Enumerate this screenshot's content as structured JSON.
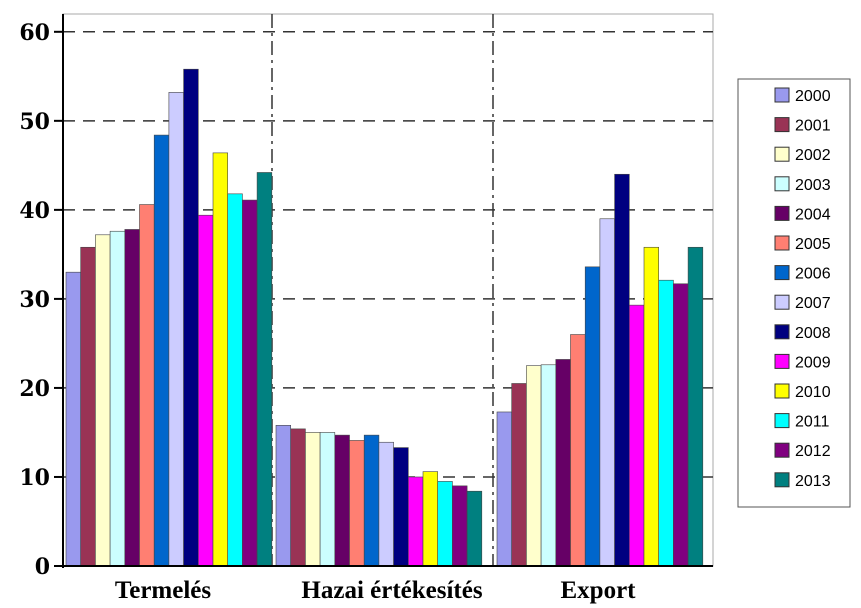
{
  "chart_data": {
    "type": "bar",
    "categories": [
      "Termelés",
      "Hazai értékesítés",
      "Export"
    ],
    "series": [
      {
        "name": "2000",
        "color": "#9999ee",
        "values": [
          33.0,
          15.8,
          17.3
        ]
      },
      {
        "name": "2001",
        "color": "#993355",
        "values": [
          35.8,
          15.4,
          20.5
        ]
      },
      {
        "name": "2002",
        "color": "#ffffcc",
        "values": [
          37.2,
          15.0,
          22.5
        ]
      },
      {
        "name": "2003",
        "color": "#ccffff",
        "values": [
          37.6,
          15.0,
          22.6
        ]
      },
      {
        "name": "2004",
        "color": "#660066",
        "values": [
          37.8,
          14.7,
          23.2
        ]
      },
      {
        "name": "2005",
        "color": "#ff7f72",
        "values": [
          40.6,
          14.1,
          26.0
        ]
      },
      {
        "name": "2006",
        "color": "#0066cc",
        "values": [
          48.4,
          14.7,
          33.6
        ]
      },
      {
        "name": "2007",
        "color": "#ccccff",
        "values": [
          53.2,
          13.9,
          39.0
        ]
      },
      {
        "name": "2008",
        "color": "#000080",
        "values": [
          55.8,
          13.3,
          44.0
        ]
      },
      {
        "name": "2009",
        "color": "#ff00ff",
        "values": [
          39.4,
          10.0,
          29.3
        ]
      },
      {
        "name": "2010",
        "color": "#ffff00",
        "values": [
          46.4,
          10.6,
          35.8
        ]
      },
      {
        "name": "2011",
        "color": "#00ffff",
        "values": [
          41.8,
          9.5,
          32.1
        ]
      },
      {
        "name": "2012",
        "color": "#800080",
        "values": [
          41.1,
          9.0,
          31.7
        ]
      },
      {
        "name": "2013",
        "color": "#008080",
        "values": [
          44.2,
          8.4,
          35.8
        ]
      }
    ],
    "yticks": [
      "0",
      "10",
      "20",
      "30",
      "40",
      "50",
      "60"
    ],
    "ylim": [
      0,
      62
    ],
    "grid": true,
    "legend_position": "right"
  }
}
